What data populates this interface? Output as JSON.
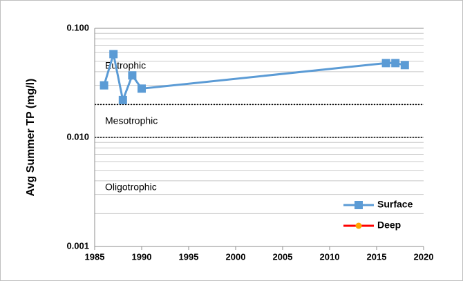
{
  "chart_data": {
    "type": "line",
    "ylabel": "Avg Summer TP (mg/l)",
    "x": [
      1986,
      1987,
      1988,
      1989,
      1990,
      2016,
      2017,
      2018
    ],
    "series": [
      {
        "name": "Surface",
        "color": "#5b9bd5",
        "marker": "square",
        "values": [
          0.03,
          0.058,
          0.022,
          0.037,
          0.028,
          0.048,
          0.048,
          0.046
        ]
      },
      {
        "name": "Deep",
        "color": "#ff0000",
        "marker_color": "#ffa500",
        "marker": "circle",
        "values": [
          null,
          null,
          null,
          null,
          null,
          null,
          null,
          null
        ]
      }
    ],
    "xlim": [
      1985,
      2020
    ],
    "xticks": [
      1985,
      1990,
      1995,
      2000,
      2005,
      2010,
      2015,
      2020
    ],
    "ylim": [
      0.001,
      0.1
    ],
    "yticks": [
      {
        "value": 0.1,
        "label": "0.100"
      },
      {
        "value": 0.01,
        "label": "0.010"
      },
      {
        "value": 0.001,
        "label": "0.001"
      }
    ],
    "log_y": true,
    "grid": true,
    "minor_grid": true,
    "reference_lines": [
      0.02,
      0.01
    ],
    "annotations": [
      "Eutrophic",
      "Mesotrophic",
      "Oligotrophic"
    ],
    "legend": "lower right"
  }
}
